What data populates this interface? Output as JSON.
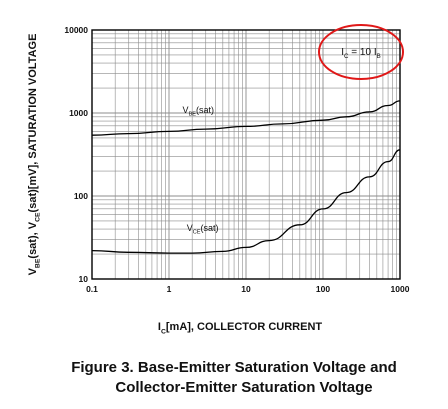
{
  "colors": {
    "curve": "#000000",
    "grid": "#8c8c8c",
    "highlight_ellipse": "#e01818",
    "text": "#111111"
  },
  "figure_caption": {
    "line1": "Figure 3. Base-Emitter Saturation Voltage and",
    "line2": "Collector-Emitter Saturation Voltage"
  },
  "chart_data": {
    "type": "line",
    "x_scale": "log",
    "y_scale": "log",
    "xlim": [
      0.1,
      1000
    ],
    "ylim": [
      10,
      10000
    ],
    "grid": true,
    "xticks": [
      "0.1",
      "1",
      "10",
      "100",
      "1000"
    ],
    "yticks": [
      "10",
      "100",
      "1000",
      "10000"
    ],
    "xlabel": {
      "main": "I",
      "sub": "C",
      "rest": "[mA], COLLECTOR CURRENT"
    },
    "ylabel": {
      "parts": [
        {
          "t": "V"
        },
        {
          "t": "BE",
          "sub": true
        },
        {
          "t": "(sat), V"
        },
        {
          "t": "CE",
          "sub": true
        },
        {
          "t": "(sat)[mV], SATURATION VOLTAGE"
        }
      ]
    },
    "condition_annotation": {
      "a": "I",
      "a_sub": "C",
      "mid": " = 10 I",
      "b_sub": "B"
    },
    "series": [
      {
        "name": "V_BE(sat)",
        "label": {
          "main": "V",
          "sub": "BE",
          "rest": "(sat)"
        },
        "label_pos": {
          "x": 1.5,
          "y": 1000
        },
        "x": [
          0.1,
          0.3,
          1,
          3,
          10,
          30,
          100,
          200,
          400,
          700,
          1000
        ],
        "y": [
          540,
          565,
          600,
          640,
          690,
          740,
          820,
          900,
          1030,
          1230,
          1400
        ]
      },
      {
        "name": "V_CE(sat)",
        "label": {
          "main": "V",
          "sub": "CE",
          "rest": "(sat)"
        },
        "label_pos": {
          "x": 1.7,
          "y": 38
        },
        "x": [
          0.1,
          0.3,
          1,
          2,
          5,
          10,
          20,
          50,
          100,
          200,
          400,
          700,
          1000
        ],
        "y": [
          22,
          21,
          20.5,
          20.5,
          21.5,
          24,
          29,
          45,
          70,
          110,
          170,
          260,
          360
        ]
      }
    ]
  }
}
